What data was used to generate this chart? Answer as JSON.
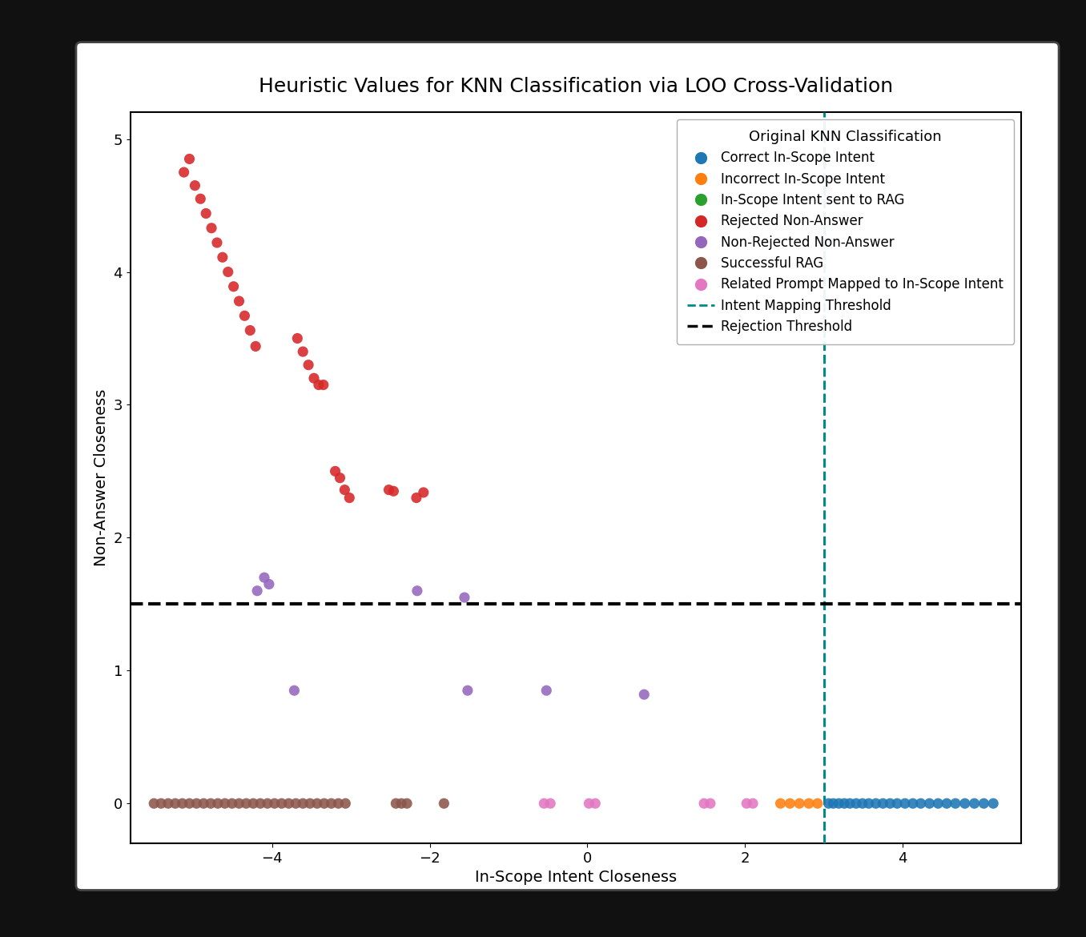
{
  "title": "Heuristic Values for KNN Classification via LOO Cross-Validation",
  "xlabel": "In-Scope Intent Closeness",
  "ylabel": "Non-Answer Closeness",
  "xlim": [
    -5.8,
    5.5
  ],
  "ylim": [
    -0.3,
    5.2
  ],
  "xticks": [
    -4,
    -2,
    0,
    2,
    4
  ],
  "yticks": [
    0,
    1,
    2,
    3,
    4,
    5
  ],
  "intent_mapping_threshold": 3.0,
  "rejection_threshold": 1.5,
  "categories": {
    "correct_in_scope": {
      "color": "#1f77b4",
      "label": "Correct In-Scope Intent",
      "points": [
        [
          3.06,
          0
        ],
        [
          3.12,
          0
        ],
        [
          3.19,
          0
        ],
        [
          3.26,
          0
        ],
        [
          3.33,
          0
        ],
        [
          3.41,
          0
        ],
        [
          3.49,
          0
        ],
        [
          3.57,
          0
        ],
        [
          3.66,
          0
        ],
        [
          3.75,
          0
        ],
        [
          3.84,
          0
        ],
        [
          3.93,
          0
        ],
        [
          4.03,
          0
        ],
        [
          4.13,
          0
        ],
        [
          4.23,
          0
        ],
        [
          4.34,
          0
        ],
        [
          4.45,
          0
        ],
        [
          4.56,
          0
        ],
        [
          4.67,
          0
        ],
        [
          4.79,
          0
        ],
        [
          4.91,
          0
        ],
        [
          5.03,
          0
        ],
        [
          5.15,
          0
        ]
      ]
    },
    "incorrect_in_scope": {
      "color": "#ff7f0e",
      "label": "Incorrect In-Scope Intent",
      "points": [
        [
          2.45,
          0
        ],
        [
          2.57,
          0
        ],
        [
          2.69,
          0
        ],
        [
          2.81,
          0
        ],
        [
          2.92,
          0
        ]
      ]
    },
    "in_scope_rag": {
      "color": "#2ca02c",
      "label": "In-Scope Intent sent to RAG",
      "points": []
    },
    "rejected_non_answer": {
      "color": "#d62728",
      "label": "Rejected Non-Answer",
      "points": [
        [
          -5.05,
          4.85
        ],
        [
          -5.12,
          4.75
        ],
        [
          -4.98,
          4.65
        ],
        [
          -4.91,
          4.55
        ],
        [
          -4.84,
          4.44
        ],
        [
          -4.77,
          4.33
        ],
        [
          -4.7,
          4.22
        ],
        [
          -4.63,
          4.11
        ],
        [
          -4.56,
          4.0
        ],
        [
          -4.49,
          3.89
        ],
        [
          -4.42,
          3.78
        ],
        [
          -4.35,
          3.67
        ],
        [
          -4.28,
          3.56
        ],
        [
          -4.21,
          3.44
        ],
        [
          -3.68,
          3.5
        ],
        [
          -3.61,
          3.4
        ],
        [
          -3.54,
          3.3
        ],
        [
          -3.47,
          3.2
        ],
        [
          -3.41,
          3.15
        ],
        [
          -3.35,
          3.15
        ],
        [
          -3.2,
          2.5
        ],
        [
          -3.14,
          2.45
        ],
        [
          -3.08,
          2.36
        ],
        [
          -3.02,
          2.3
        ],
        [
          -2.52,
          2.36
        ],
        [
          -2.46,
          2.35
        ],
        [
          -2.08,
          2.34
        ],
        [
          -2.17,
          2.3
        ]
      ]
    },
    "non_rejected_non_answer": {
      "color": "#9467bd",
      "label": "Non-Rejected Non-Answer",
      "points": [
        [
          -4.1,
          1.7
        ],
        [
          -4.04,
          1.65
        ],
        [
          -4.19,
          1.6
        ],
        [
          -2.16,
          1.6
        ],
        [
          -1.56,
          1.55
        ],
        [
          -3.72,
          0.85
        ],
        [
          -1.52,
          0.85
        ],
        [
          -0.52,
          0.85
        ],
        [
          0.72,
          0.82
        ]
      ]
    },
    "successful_rag": {
      "color": "#8c564b",
      "label": "Successful RAG",
      "points": [
        [
          -5.5,
          0
        ],
        [
          -5.41,
          0
        ],
        [
          -5.32,
          0
        ],
        [
          -5.23,
          0
        ],
        [
          -5.14,
          0
        ],
        [
          -5.05,
          0
        ],
        [
          -4.96,
          0
        ],
        [
          -4.87,
          0
        ],
        [
          -4.78,
          0
        ],
        [
          -4.69,
          0
        ],
        [
          -4.6,
          0
        ],
        [
          -4.51,
          0
        ],
        [
          -4.42,
          0
        ],
        [
          -4.33,
          0
        ],
        [
          -4.24,
          0
        ],
        [
          -4.15,
          0
        ],
        [
          -4.06,
          0
        ],
        [
          -3.97,
          0
        ],
        [
          -3.88,
          0
        ],
        [
          -3.79,
          0
        ],
        [
          -3.7,
          0
        ],
        [
          -3.61,
          0
        ],
        [
          -3.52,
          0
        ],
        [
          -3.43,
          0
        ],
        [
          -3.34,
          0
        ],
        [
          -3.25,
          0
        ],
        [
          -3.16,
          0
        ],
        [
          -3.07,
          0
        ],
        [
          -2.43,
          0
        ],
        [
          -2.36,
          0
        ],
        [
          -2.29,
          0
        ],
        [
          -1.82,
          0
        ]
      ]
    },
    "related_prompt": {
      "color": "#e377c2",
      "label": "Related Prompt Mapped to In-Scope Intent",
      "points": [
        [
          -0.55,
          0
        ],
        [
          -0.47,
          0
        ],
        [
          0.02,
          0
        ],
        [
          0.1,
          0
        ],
        [
          1.48,
          0
        ],
        [
          1.56,
          0
        ],
        [
          2.02,
          0
        ],
        [
          2.1,
          0
        ]
      ]
    }
  },
  "title_fontsize": 18,
  "label_fontsize": 14,
  "tick_fontsize": 13,
  "legend_title_fontsize": 13,
  "legend_fontsize": 12,
  "teal_color": "#008B8B",
  "black_color": "#000000",
  "frame_color": "#1a1a1a",
  "frame_bg": "#111111"
}
